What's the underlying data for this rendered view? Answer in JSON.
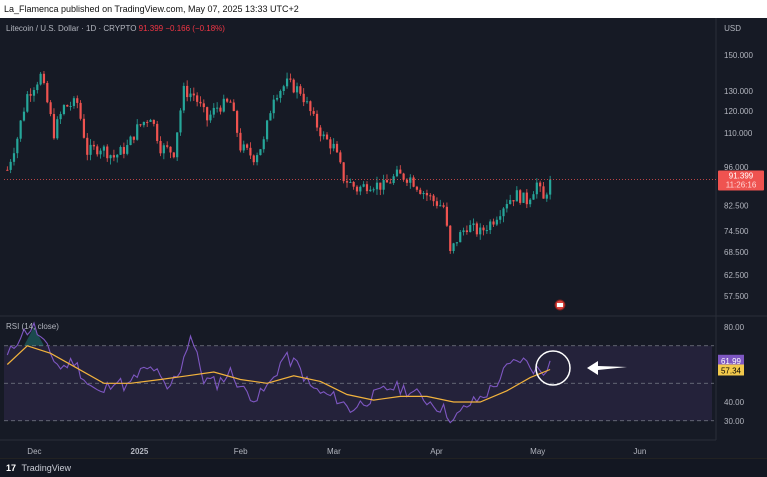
{
  "publisher_bar": "La_Flamenca published on TradingView.com, May 07, 2025 13:33 UTC+2",
  "header": {
    "symbol": "Litecoin / U.S. Dollar · 1D · CRYPTO",
    "price": "91.399",
    "change": "−0.166 (−0.18%)",
    "currency": "USD"
  },
  "rsi": {
    "title": "RSI (14, close)",
    "value_label": "61.99",
    "ma_label": "57.34"
  },
  "price_tag": {
    "price": "91.399",
    "countdown": "11:26:16"
  },
  "footer": {
    "logo": "17",
    "brand": "TradingView"
  },
  "colors": {
    "up": "#26a69a",
    "down": "#ef5350",
    "rsi_line": "#7e57c2",
    "rsi_ma": "#f2b33d",
    "background": "#161a25"
  },
  "icons": [
    "tradingview-logo-icon",
    "event-marker-icon",
    "arrow-left-icon"
  ],
  "chart_data": [
    {
      "type": "candlestick",
      "title": "Litecoin / U.S. Dollar · 1D · CRYPTO",
      "y_axis_labels": [
        "150.000",
        "130.000",
        "120.000",
        "110.000",
        "96.000",
        "82.500",
        "74.500",
        "68.500",
        "62.500",
        "57.500"
      ],
      "y_scale": "log",
      "x_tick_labels": [
        "Dec",
        "2025",
        "Feb",
        "Mar",
        "Apr",
        "May",
        "Jun"
      ],
      "x_ticks": [
        "2024-12-01",
        "2025-01-01",
        "2025-02-01",
        "2025-03-01",
        "2025-04-01",
        "2025-05-01",
        "2025-06-01"
      ],
      "last_price": 91.399,
      "waypoints_close": [
        [
          "2024-11-25",
          95
        ],
        [
          "2024-11-28",
          108
        ],
        [
          "2024-12-01",
          128
        ],
        [
          "2024-12-05",
          138
        ],
        [
          "2024-12-09",
          110
        ],
        [
          "2024-12-12",
          122
        ],
        [
          "2024-12-16",
          124
        ],
        [
          "2024-12-19",
          102
        ],
        [
          "2024-12-23",
          104
        ],
        [
          "2024-12-27",
          100
        ],
        [
          "2024-12-31",
          104
        ],
        [
          "2025-01-03",
          112
        ],
        [
          "2025-01-07",
          118
        ],
        [
          "2025-01-10",
          104
        ],
        [
          "2025-01-14",
          102
        ],
        [
          "2025-01-17",
          130
        ],
        [
          "2025-01-20",
          128
        ],
        [
          "2025-01-24",
          116
        ],
        [
          "2025-01-27",
          122
        ],
        [
          "2025-01-31",
          124
        ],
        [
          "2025-02-03",
          104
        ],
        [
          "2025-02-07",
          100
        ],
        [
          "2025-02-10",
          106
        ],
        [
          "2025-02-13",
          128
        ],
        [
          "2025-02-17",
          134
        ],
        [
          "2025-02-21",
          130
        ],
        [
          "2025-02-25",
          116
        ],
        [
          "2025-02-28",
          108
        ],
        [
          "2025-03-03",
          104
        ],
        [
          "2025-03-06",
          92
        ],
        [
          "2025-03-10",
          88
        ],
        [
          "2025-03-14",
          90
        ],
        [
          "2025-03-18",
          89
        ],
        [
          "2025-03-22",
          93
        ],
        [
          "2025-03-26",
          92
        ],
        [
          "2025-03-29",
          88
        ],
        [
          "2025-04-02",
          84
        ],
        [
          "2025-04-05",
          82
        ],
        [
          "2025-04-07",
          68
        ],
        [
          "2025-04-09",
          72
        ],
        [
          "2025-04-12",
          76
        ],
        [
          "2025-04-16",
          74
        ],
        [
          "2025-04-20",
          78
        ],
        [
          "2025-04-24",
          84
        ],
        [
          "2025-04-27",
          86
        ],
        [
          "2025-04-30",
          84
        ],
        [
          "2025-05-03",
          90
        ],
        [
          "2025-05-05",
          84
        ],
        [
          "2025-05-07",
          91.4
        ]
      ]
    },
    {
      "type": "line",
      "title": "RSI (14, close)",
      "y_axis_labels": [
        "80.00",
        "40.00",
        "30.00"
      ],
      "bands": [
        70,
        50,
        30
      ],
      "series": [
        {
          "name": "RSI",
          "values_by_date": [
            [
              "2024-11-25",
              64
            ],
            [
              "2024-11-29",
              76
            ],
            [
              "2024-12-03",
              80
            ],
            [
              "2024-12-07",
              68
            ],
            [
              "2024-12-11",
              58
            ],
            [
              "2024-12-15",
              62
            ],
            [
              "2024-12-19",
              50
            ],
            [
              "2024-12-23",
              44
            ],
            [
              "2024-12-27",
              52
            ],
            [
              "2024-12-31",
              48
            ],
            [
              "2025-01-04",
              56
            ],
            [
              "2025-01-08",
              58
            ],
            [
              "2025-01-12",
              46
            ],
            [
              "2025-01-16",
              58
            ],
            [
              "2025-01-19",
              76
            ],
            [
              "2025-01-23",
              52
            ],
            [
              "2025-01-27",
              50
            ],
            [
              "2025-01-31",
              56
            ],
            [
              "2025-02-04",
              46
            ],
            [
              "2025-02-08",
              42
            ],
            [
              "2025-02-12",
              50
            ],
            [
              "2025-02-16",
              64
            ],
            [
              "2025-02-20",
              60
            ],
            [
              "2025-02-24",
              48
            ],
            [
              "2025-02-28",
              44
            ],
            [
              "2025-03-04",
              42
            ],
            [
              "2025-03-08",
              36
            ],
            [
              "2025-03-12",
              40
            ],
            [
              "2025-03-16",
              44
            ],
            [
              "2025-03-20",
              48
            ],
            [
              "2025-03-24",
              47
            ],
            [
              "2025-03-28",
              44
            ],
            [
              "2025-04-01",
              40
            ],
            [
              "2025-04-05",
              36
            ],
            [
              "2025-04-08",
              30
            ],
            [
              "2025-04-12",
              38
            ],
            [
              "2025-04-16",
              42
            ],
            [
              "2025-04-20",
              48
            ],
            [
              "2025-04-24",
              58
            ],
            [
              "2025-04-28",
              63
            ],
            [
              "2025-05-02",
              58
            ],
            [
              "2025-05-05",
              56
            ],
            [
              "2025-05-07",
              62
            ]
          ]
        },
        {
          "name": "RSI-based MA",
          "values_by_date": [
            [
              "2024-11-25",
              60
            ],
            [
              "2024-12-01",
              70
            ],
            [
              "2024-12-08",
              66
            ],
            [
              "2024-12-16",
              58
            ],
            [
              "2024-12-24",
              50
            ],
            [
              "2025-01-01",
              50
            ],
            [
              "2025-01-10",
              52
            ],
            [
              "2025-01-18",
              54
            ],
            [
              "2025-01-26",
              56
            ],
            [
              "2025-02-03",
              52
            ],
            [
              "2025-02-11",
              50
            ],
            [
              "2025-02-19",
              54
            ],
            [
              "2025-02-27",
              51
            ],
            [
              "2025-03-07",
              44
            ],
            [
              "2025-03-15",
              41
            ],
            [
              "2025-03-23",
              43
            ],
            [
              "2025-03-31",
              43
            ],
            [
              "2025-04-08",
              40
            ],
            [
              "2025-04-16",
              40
            ],
            [
              "2025-04-24",
              46
            ],
            [
              "2025-05-01",
              53
            ],
            [
              "2025-05-07",
              57.34
            ]
          ]
        }
      ]
    }
  ]
}
